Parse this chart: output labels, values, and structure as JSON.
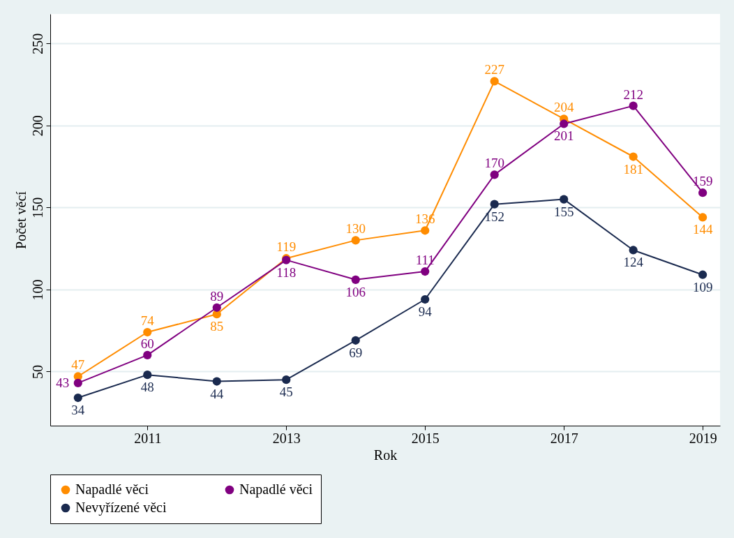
{
  "chart_data": {
    "type": "line",
    "xlabel": "Rok",
    "ylabel": "Počet věcí",
    "x": [
      2010,
      2011,
      2012,
      2013,
      2014,
      2015,
      2016,
      2017,
      2018,
      2019
    ],
    "xlim": [
      2009.6,
      2019.25
    ],
    "xticks": [
      2011,
      2013,
      2015,
      2017,
      2019
    ],
    "ylim": [
      17,
      268
    ],
    "yticks": [
      50,
      100,
      150,
      200,
      250
    ],
    "grid": "y",
    "legend": "bottom",
    "marker": "circle",
    "line_style": "solid",
    "data_labels": true,
    "series": [
      {
        "name": "Napadlé věci",
        "color": "#ff8c00",
        "values": [
          47,
          74,
          85,
          119,
          130,
          136,
          227,
          204,
          181,
          144
        ]
      },
      {
        "name": "Napadlé věci",
        "color": "#800080",
        "values": [
          43,
          60,
          89,
          118,
          106,
          111,
          170,
          201,
          212,
          159
        ]
      },
      {
        "name": "Nevyřízené věci",
        "color": "#1a2a4f",
        "values": [
          34,
          48,
          44,
          45,
          69,
          94,
          152,
          155,
          124,
          109
        ]
      }
    ]
  }
}
